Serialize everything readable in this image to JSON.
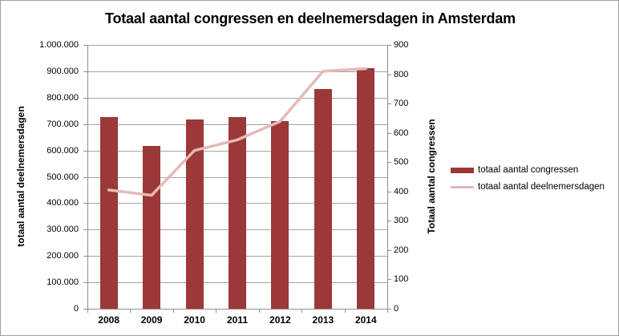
{
  "chart_data": {
    "type": "bar",
    "title": "Totaal aantal congressen en deelnemersdagen in Amsterdam",
    "categories": [
      "2008",
      "2009",
      "2010",
      "2011",
      "2012",
      "2013",
      "2014"
    ],
    "series": [
      {
        "name": "totaal aantal congressen",
        "type": "bar",
        "axis": "right",
        "color": "#9a3938",
        "values": [
          655,
          555,
          645,
          655,
          640,
          750,
          820
        ]
      },
      {
        "name": "totaal aantal deelnemersdagen",
        "type": "line",
        "axis": "left",
        "color": "#e6b9b8",
        "values": [
          450000,
          430000,
          600000,
          640000,
          710000,
          900000,
          910000
        ]
      }
    ],
    "left_axis": {
      "title": "totaal aantal deelnemersdagen",
      "min": 0,
      "max": 1000000,
      "step": 100000,
      "tick_labels": [
        "1.000.000",
        "900.000",
        "800.000",
        "700.000",
        "600.000",
        "500.000",
        "400.000",
        "300.000",
        "200.000",
        "100.000",
        "0"
      ]
    },
    "right_axis": {
      "title": "Totaal aantal congressen",
      "min": 0,
      "max": 900,
      "step": 100,
      "tick_labels": [
        "900",
        "800",
        "700",
        "600",
        "500",
        "400",
        "300",
        "200",
        "100",
        "0"
      ]
    },
    "x_axis": {
      "tick_labels": [
        "2008",
        "2009",
        "2010",
        "2011",
        "2012",
        "2013",
        "2014"
      ]
    },
    "legend_position": "right",
    "grid": true,
    "colors": {
      "grid": "#a3a3a3",
      "axis": "#8e8e8e",
      "frame_border": "#a0a0a0",
      "text": "#000000"
    }
  }
}
